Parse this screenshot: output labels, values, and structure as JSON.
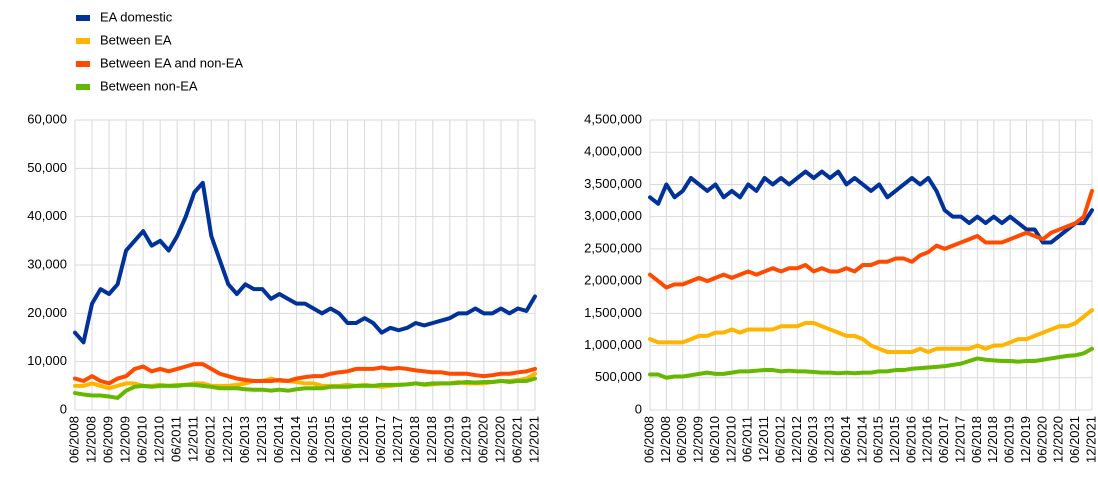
{
  "chart_data": [
    {
      "type": "line",
      "categories": [
        "06/2008",
        null,
        "12/2008",
        null,
        "06/2009",
        null,
        "12/2009",
        null,
        "06/2010",
        null,
        "12/2010",
        null,
        "06/2011",
        null,
        "12/2011",
        null,
        "06/2012",
        null,
        "12/2012",
        null,
        "06/2013",
        null,
        "12/2013",
        null,
        "06/2014",
        null,
        "12/2014",
        null,
        "06/2015",
        null,
        "12/2015",
        null,
        "06/2016",
        null,
        "12/2016",
        null,
        "06/2017",
        null,
        "12/2017",
        null,
        "06/2018",
        null,
        "12/2018",
        null,
        "06/2019",
        null,
        "12/2019",
        null,
        "06/2020",
        null,
        "12/2020",
        null,
        "06/2021",
        null,
        "12/2021"
      ],
      "ylim": [
        0,
        60000
      ],
      "yticks": [
        0,
        {
          "value": 10000,
          "label": "10,000"
        },
        {
          "value": 20000,
          "label": "20,000"
        },
        {
          "value": 30000,
          "label": "30,000"
        },
        {
          "value": 40000,
          "label": "40,000"
        },
        {
          "value": 50000,
          "label": "50,000"
        },
        {
          "value": 60000,
          "label": "60,000"
        }
      ],
      "grid": true,
      "series": [
        {
          "name": "EA domestic",
          "color": "#003299",
          "values": [
            16000,
            14000,
            22000,
            25000,
            24000,
            26000,
            33000,
            35000,
            37000,
            34000,
            35000,
            33000,
            36000,
            40000,
            45000,
            47000,
            36000,
            31000,
            26000,
            24000,
            26000,
            25000,
            25000,
            23000,
            24000,
            23000,
            22000,
            22000,
            21000,
            20000,
            21000,
            20000,
            18000,
            18000,
            19000,
            18000,
            16000,
            17000,
            16500,
            17000,
            18000,
            17500,
            18000,
            18500,
            19000,
            20000,
            20000,
            21000,
            20000,
            20000,
            21000,
            20000,
            21000,
            20500,
            23500
          ]
        },
        {
          "name": "Between EA",
          "color": "#ffb400",
          "values": [
            5000,
            5000,
            5500,
            5000,
            4500,
            5000,
            5500,
            5500,
            5000,
            5000,
            5200,
            5000,
            5200,
            5200,
            5500,
            5500,
            5000,
            5000,
            5000,
            5200,
            5500,
            6000,
            6000,
            6500,
            6000,
            6000,
            5800,
            5500,
            5500,
            5000,
            5000,
            5000,
            5200,
            5000,
            5200,
            5000,
            4800,
            5000,
            5200,
            5300,
            5500,
            5200,
            5300,
            5500,
            5500,
            5800,
            5500,
            5500,
            5500,
            5800,
            6000,
            6000,
            6200,
            6500,
            7500
          ]
        },
        {
          "name": "Between EA and non-EA",
          "color": "#ff4b00",
          "values": [
            6500,
            6000,
            7000,
            6000,
            5500,
            6500,
            7000,
            8500,
            9000,
            8000,
            8500,
            8000,
            8500,
            9000,
            9500,
            9500,
            8500,
            7500,
            7000,
            6500,
            6200,
            6000,
            6000,
            6000,
            6200,
            6000,
            6500,
            6800,
            7000,
            7000,
            7500,
            7800,
            8000,
            8500,
            8500,
            8500,
            8800,
            8500,
            8700,
            8500,
            8200,
            8000,
            7800,
            7800,
            7500,
            7500,
            7500,
            7200,
            7000,
            7200,
            7500,
            7500,
            7800,
            8000,
            8500
          ]
        },
        {
          "name": "Between non-EA",
          "color": "#65b800",
          "values": [
            3500,
            3200,
            3000,
            3000,
            2800,
            2500,
            4000,
            4800,
            5000,
            4800,
            5000,
            5000,
            5000,
            5200,
            5200,
            5000,
            4800,
            4500,
            4500,
            4500,
            4300,
            4200,
            4200,
            4000,
            4200,
            4000,
            4300,
            4500,
            4500,
            4500,
            4800,
            4800,
            4800,
            5000,
            5000,
            5000,
            5200,
            5200,
            5200,
            5300,
            5500,
            5300,
            5500,
            5500,
            5500,
            5600,
            5800,
            5700,
            5800,
            5800,
            6000,
            5800,
            6000,
            6000,
            6500
          ]
        }
      ]
    },
    {
      "type": "line",
      "categories": [
        "06/2008",
        null,
        "12/2008",
        null,
        "06/2009",
        null,
        "12/2009",
        null,
        "06/2010",
        null,
        "12/2010",
        null,
        "06/2011",
        null,
        "12/2011",
        null,
        "06/2012",
        null,
        "12/2012",
        null,
        "06/2013",
        null,
        "12/2013",
        null,
        "06/2014",
        null,
        "12/2014",
        null,
        "06/2015",
        null,
        "12/2015",
        null,
        "06/2016",
        null,
        "12/2016",
        null,
        "06/2017",
        null,
        "12/2017",
        null,
        "06/2018",
        null,
        "12/2018",
        null,
        "06/2019",
        null,
        "12/2019",
        null,
        "06/2020",
        null,
        "12/2020",
        null,
        "06/2021",
        null,
        "12/2021"
      ],
      "ylim": [
        0,
        4500000
      ],
      "yticks": [
        0,
        {
          "value": 500000,
          "label": "500,000"
        },
        {
          "value": 1000000,
          "label": "1,000,000"
        },
        {
          "value": 1500000,
          "label": "1,500,000"
        },
        {
          "value": 2000000,
          "label": "2,000,000"
        },
        {
          "value": 2500000,
          "label": "2,500,000"
        },
        {
          "value": 3000000,
          "label": "3,000,000"
        },
        {
          "value": 3500000,
          "label": "3,500,000"
        },
        {
          "value": 4000000,
          "label": "4,000,000"
        },
        {
          "value": 4500000,
          "label": "4,500,000"
        }
      ],
      "grid": true,
      "series": [
        {
          "color": "#003299",
          "values": [
            3300000,
            3200000,
            3500000,
            3300000,
            3400000,
            3600000,
            3500000,
            3400000,
            3500000,
            3300000,
            3400000,
            3300000,
            3500000,
            3400000,
            3600000,
            3500000,
            3600000,
            3500000,
            3600000,
            3700000,
            3600000,
            3700000,
            3600000,
            3700000,
            3500000,
            3600000,
            3500000,
            3400000,
            3500000,
            3300000,
            3400000,
            3500000,
            3600000,
            3500000,
            3600000,
            3400000,
            3100000,
            3000000,
            3000000,
            2900000,
            3000000,
            2900000,
            3000000,
            2900000,
            3000000,
            2900000,
            2800000,
            2800000,
            2600000,
            2600000,
            2700000,
            2800000,
            2900000,
            2900000,
            3100000
          ]
        },
        {
          "color": "#ffb400",
          "values": [
            1100000,
            1050000,
            1050000,
            1050000,
            1050000,
            1100000,
            1150000,
            1150000,
            1200000,
            1200000,
            1250000,
            1200000,
            1250000,
            1250000,
            1250000,
            1250000,
            1300000,
            1300000,
            1300000,
            1350000,
            1350000,
            1300000,
            1250000,
            1200000,
            1150000,
            1150000,
            1100000,
            1000000,
            950000,
            900000,
            900000,
            900000,
            900000,
            950000,
            900000,
            950000,
            950000,
            950000,
            950000,
            950000,
            1000000,
            950000,
            1000000,
            1000000,
            1050000,
            1100000,
            1100000,
            1150000,
            1200000,
            1250000,
            1300000,
            1300000,
            1350000,
            1450000,
            1550000
          ]
        },
        {
          "color": "#ff4b00",
          "values": [
            2100000,
            2000000,
            1900000,
            1950000,
            1950000,
            2000000,
            2050000,
            2000000,
            2050000,
            2100000,
            2050000,
            2100000,
            2150000,
            2100000,
            2150000,
            2200000,
            2150000,
            2200000,
            2200000,
            2250000,
            2150000,
            2200000,
            2150000,
            2150000,
            2200000,
            2150000,
            2250000,
            2250000,
            2300000,
            2300000,
            2350000,
            2350000,
            2300000,
            2400000,
            2450000,
            2550000,
            2500000,
            2550000,
            2600000,
            2650000,
            2700000,
            2600000,
            2600000,
            2600000,
            2650000,
            2700000,
            2750000,
            2700000,
            2650000,
            2750000,
            2800000,
            2850000,
            2900000,
            3000000,
            3400000
          ]
        },
        {
          "color": "#65b800",
          "values": [
            550000,
            550000,
            500000,
            520000,
            520000,
            540000,
            560000,
            580000,
            560000,
            560000,
            580000,
            600000,
            600000,
            610000,
            620000,
            620000,
            600000,
            610000,
            600000,
            600000,
            590000,
            580000,
            580000,
            570000,
            580000,
            570000,
            580000,
            580000,
            600000,
            600000,
            620000,
            620000,
            640000,
            650000,
            660000,
            670000,
            680000,
            700000,
            720000,
            760000,
            800000,
            780000,
            770000,
            760000,
            760000,
            750000,
            760000,
            760000,
            780000,
            800000,
            820000,
            840000,
            850000,
            880000,
            950000
          ]
        }
      ]
    }
  ]
}
